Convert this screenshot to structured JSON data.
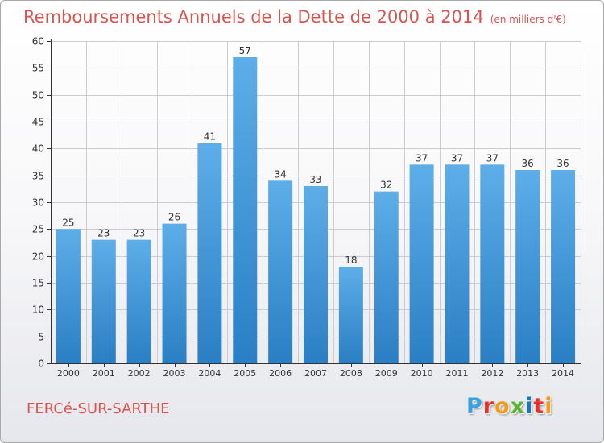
{
  "header": {
    "title": "Remboursements Annuels de la Dette de 2000 à 2014",
    "unit": "(en milliers d'€)"
  },
  "footer": {
    "town": "FERCé-SUR-SARTHE",
    "logo_letters": [
      "P",
      "r",
      "o",
      "x",
      "i",
      "t",
      "i"
    ],
    "logo_colors": [
      "#3aa0de",
      "#e9302a",
      "#f39a1b",
      "#5bb532",
      "#1d76bb",
      "#e9302a",
      "#f39a1b"
    ]
  },
  "colors": {
    "bar_top": "#5daee8",
    "bar_bottom": "#2a7fc4",
    "axis": "#333333",
    "grid": "#cccccc",
    "title": "#d9534f"
  },
  "chart_data": {
    "type": "bar",
    "title": "Remboursements Annuels de la Dette de 2000 à 2014",
    "subtitle": "(en milliers d'€)",
    "categories": [
      "2000",
      "2001",
      "2002",
      "2003",
      "2004",
      "2005",
      "2006",
      "2007",
      "2008",
      "2009",
      "2010",
      "2011",
      "2012",
      "2013",
      "2014"
    ],
    "values": [
      25,
      23,
      23,
      26,
      41,
      57,
      34,
      33,
      18,
      32,
      37,
      37,
      37,
      36,
      36
    ],
    "ylim": [
      0,
      60
    ],
    "yticks": [
      0,
      5,
      10,
      15,
      20,
      25,
      30,
      35,
      40,
      45,
      50,
      55,
      60
    ],
    "grid": true,
    "data_labels": true,
    "legend": "none"
  }
}
